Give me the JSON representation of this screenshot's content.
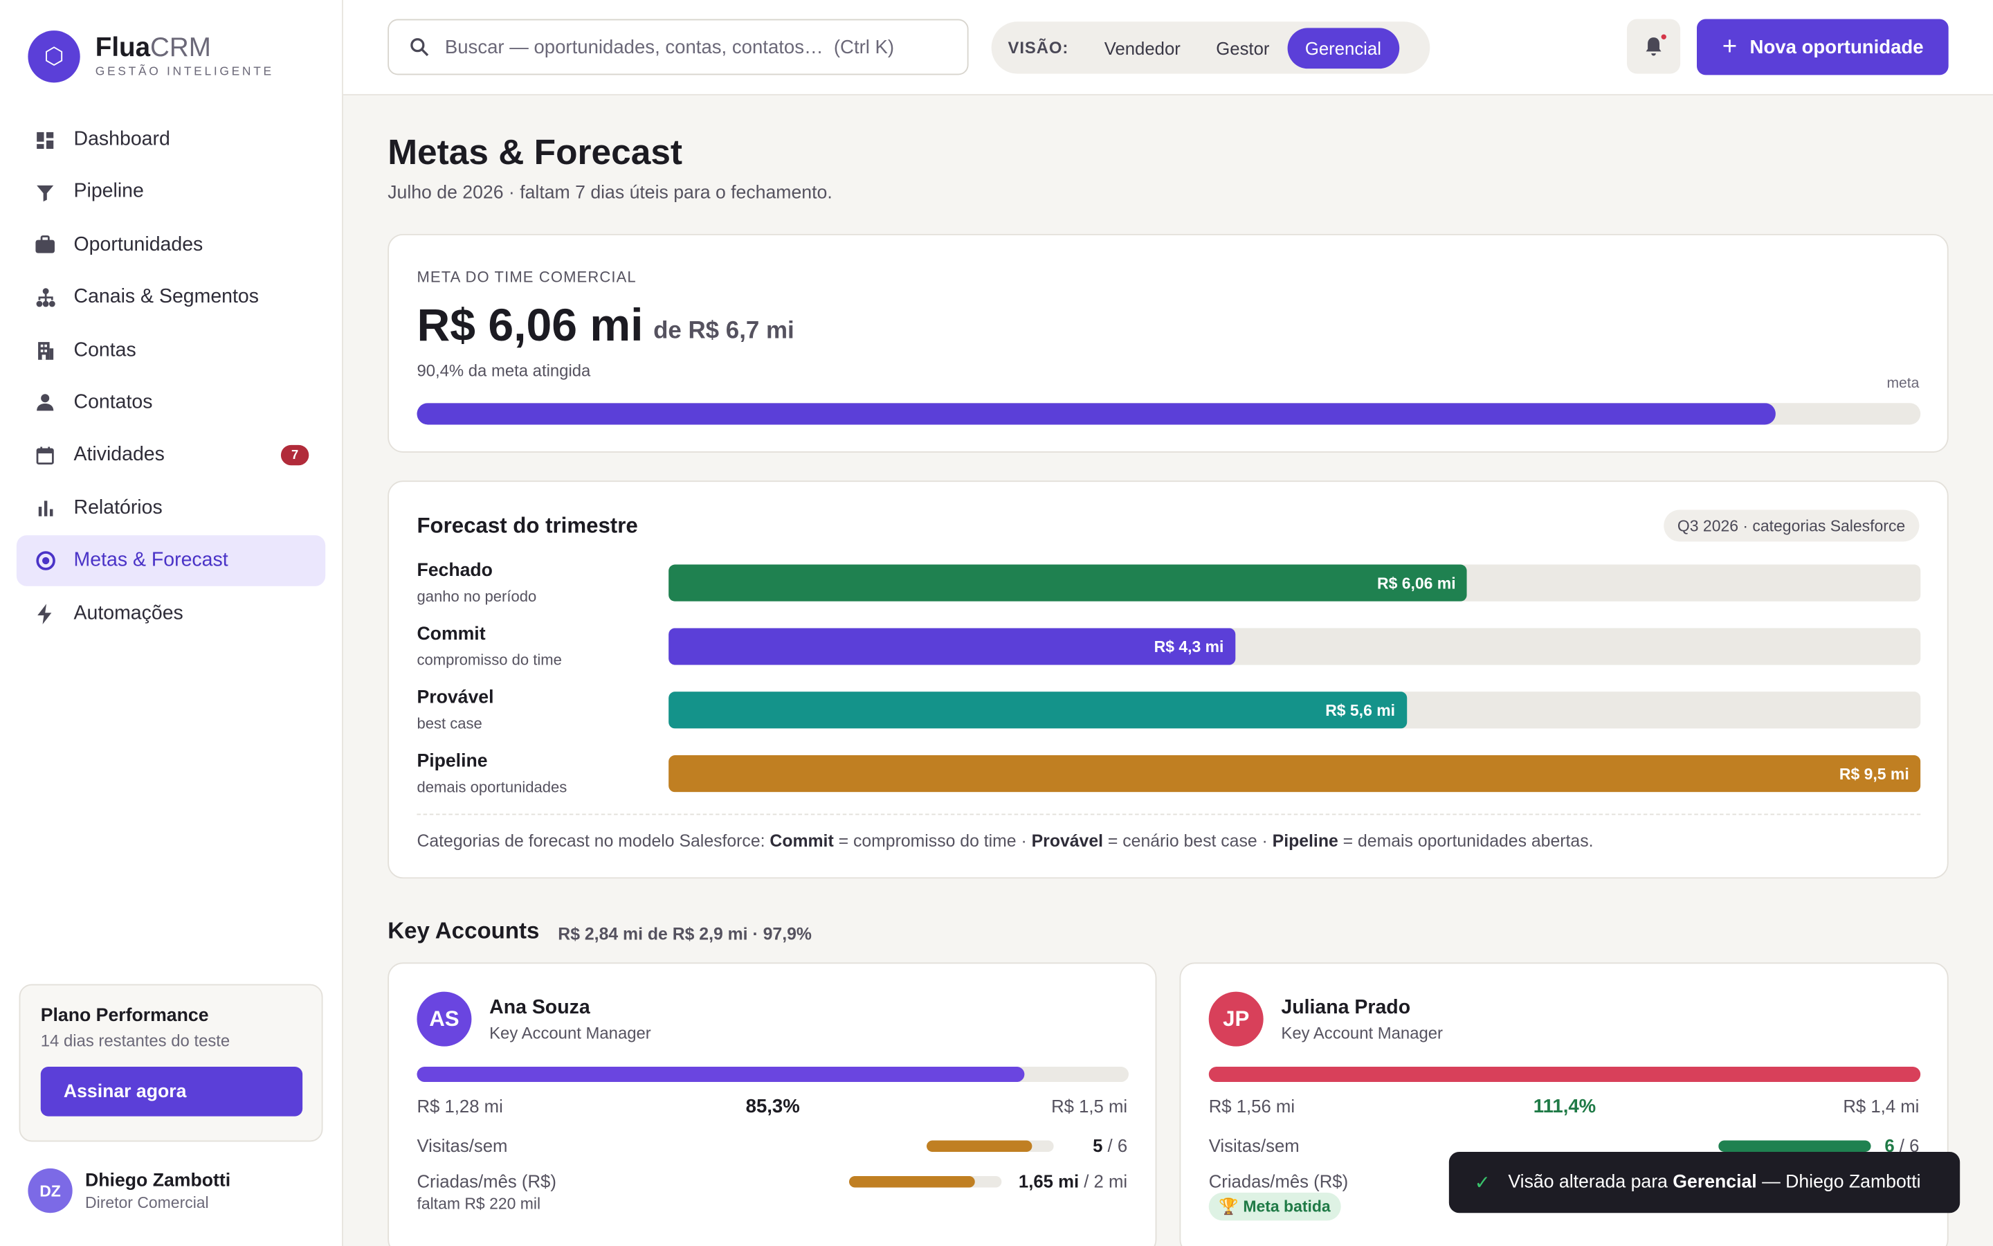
{
  "app": {
    "brand_name": "Flua",
    "brand_suffix": "CRM",
    "brand_tagline": "GESTÃO INTELIGENTE",
    "logo_glyph": "⬡"
  },
  "sidebar": {
    "items": [
      {
        "label": "Dashboard",
        "icon": "dashboard-icon"
      },
      {
        "label": "Pipeline",
        "icon": "funnel-icon"
      },
      {
        "label": "Oportunidades",
        "icon": "briefcase-icon"
      },
      {
        "label": "Canais & Segmentos",
        "icon": "hierarchy-icon"
      },
      {
        "label": "Contas",
        "icon": "building-icon"
      },
      {
        "label": "Contatos",
        "icon": "person-icon"
      },
      {
        "label": "Atividades",
        "icon": "calendar-icon",
        "badge": "7"
      },
      {
        "label": "Relatórios",
        "icon": "bar-chart-icon"
      },
      {
        "label": "Metas & Forecast",
        "icon": "target-icon",
        "active": true
      },
      {
        "label": "Automações",
        "icon": "lightning-icon"
      }
    ],
    "plan": {
      "title": "Plano Performance",
      "subtitle": "14 dias restantes do teste",
      "cta": "Assinar agora"
    },
    "user": {
      "initials": "DZ",
      "name": "Dhiego Zambotti",
      "role": "Diretor Comercial"
    }
  },
  "header": {
    "search_placeholder": "Buscar — oportunidades, contas, contatos…  (Ctrl K)",
    "view_label": "VISÃO:",
    "view_options": [
      "Vendedor",
      "Gestor",
      "Gerencial"
    ],
    "view_selected": "Gerencial",
    "new_button": "Nova oportunidade"
  },
  "page": {
    "title": "Metas & Forecast",
    "subtitle": "Julho de 2026 · faltam 7 dias úteis para o fechamento."
  },
  "team_goal": {
    "eyebrow": "META DO TIME COMERCIAL",
    "value": "R$ 6,06 mi",
    "of_target": "de R$ 6,7 mi",
    "pct_text": "90,4% da meta atingida",
    "progress": 0.904,
    "marker_label": "meta",
    "color": "#5b3fd8"
  },
  "forecast": {
    "title": "Forecast do trimestre",
    "chip": "Q3 2026 · categorias Salesforce",
    "rows": [
      {
        "name": "Fechado",
        "desc": "ganho no período",
        "value": "R$ 6,06 mi",
        "amount": 6.06,
        "color": "#1f8150"
      },
      {
        "name": "Commit",
        "desc": "compromisso do time",
        "value": "R$ 4,3 mi",
        "amount": 4.3,
        "color": "#5b3fd8"
      },
      {
        "name": "Provável",
        "desc": "best case",
        "value": "R$ 5,6 mi",
        "amount": 5.6,
        "color": "#14938a"
      },
      {
        "name": "Pipeline",
        "desc": "demais oportunidades",
        "value": "R$ 9,5 mi",
        "amount": 9.5,
        "color": "#c07f22"
      }
    ],
    "max_amount": 9.5,
    "note": {
      "prefix": "Categorias de forecast no modelo Salesforce: ",
      "t1": "Commit",
      "d1": " = compromisso do time · ",
      "t2": "Provável",
      "d2": " = cenário best case · ",
      "t3": "Pipeline",
      "d3": " = demais oportunidades abertas."
    }
  },
  "key_accounts": {
    "title": "Key Accounts",
    "summary": "R$ 2,84 mi de R$ 2,9 mi · 97,9%",
    "cards": [
      {
        "initials": "AS",
        "name": "Ana Souza",
        "role": "Key Account Manager",
        "avatar_color": "#6a45e0",
        "current": "R$ 1,28 mi",
        "goal": "R$ 1,5 mi",
        "pct": "85,3%",
        "progress": 0.853,
        "bar_color": "#6a45e0",
        "pct_color": "#1c1b22",
        "visits_label": "Visitas/sem",
        "visits_value": "5",
        "visits_goal": " / 6",
        "visits_progress": 0.833,
        "visits_color": "#c07f22",
        "created_label": "Criadas/mês (R$)",
        "created_value": "1,65 mi",
        "created_goal": " / 2 mi",
        "created_progress": 0.825,
        "created_color": "#c07f22",
        "extra": "faltam R$ 220 mil"
      },
      {
        "initials": "JP",
        "name": "Juliana Prado",
        "role": "Key Account Manager",
        "avatar_color": "#d8405a",
        "current": "R$ 1,56 mi",
        "goal": "R$ 1,4 mi",
        "pct": "111,4%",
        "progress": 1.0,
        "bar_color": "#d8405a",
        "pct_color": "#1f7a46",
        "visits_label": "Visitas/sem",
        "visits_value": "6",
        "visits_goal": " / 6",
        "visits_progress": 1.0,
        "visits_color": "#1f8150",
        "created_label": "Criadas/mês (R$)",
        "badge": "🏆 Meta batida"
      }
    ]
  },
  "toast": {
    "prefix": "Visão alterada para ",
    "bold": "Gerencial",
    "suffix": " — Dhiego Zambotti"
  }
}
